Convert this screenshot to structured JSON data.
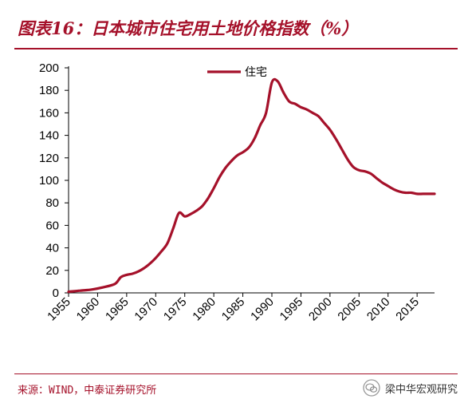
{
  "title": "图表16：日本城市住宅用土地价格指数（%）",
  "source": "来源：WIND，中泰证券研究所",
  "watermark": "梁中华宏观研究",
  "colors": {
    "accent": "#a5112a",
    "series": "#a5112a"
  },
  "chart_data": {
    "type": "line",
    "title": "图表16：日本城市住宅用土地价格指数（%）",
    "xlabel": "",
    "ylabel": "",
    "xlim": [
      1955,
      2018
    ],
    "ylim": [
      0,
      200
    ],
    "yticks": [
      0,
      20,
      40,
      60,
      80,
      100,
      120,
      140,
      160,
      180,
      200
    ],
    "xticks": [
      1955,
      1960,
      1965,
      1970,
      1975,
      1980,
      1985,
      1990,
      1995,
      2000,
      2005,
      2010,
      2015
    ],
    "legend": "top",
    "grid": false,
    "series": [
      {
        "name": "住宅",
        "x": [
          1955,
          1957,
          1959,
          1961,
          1963,
          1964,
          1965,
          1966,
          1967,
          1968,
          1969,
          1970,
          1971,
          1972,
          1973,
          1974,
          1975,
          1976,
          1977,
          1978,
          1979,
          1980,
          1981,
          1982,
          1983,
          1984,
          1985,
          1986,
          1987,
          1988,
          1989,
          1990,
          1991,
          1992,
          1993,
          1994,
          1995,
          1996,
          1997,
          1998,
          1999,
          2000,
          2001,
          2002,
          2003,
          2004,
          2005,
          2006,
          2007,
          2008,
          2009,
          2010,
          2011,
          2012,
          2013,
          2014,
          2015,
          2016,
          2017,
          2018
        ],
        "values": [
          1,
          2,
          3,
          5,
          8,
          14,
          16,
          17,
          19,
          22,
          26,
          31,
          37,
          44,
          57,
          71,
          68,
          70,
          73,
          77,
          84,
          93,
          103,
          111,
          117,
          122,
          125,
          129,
          137,
          149,
          160,
          187,
          188,
          178,
          170,
          168,
          165,
          163,
          160,
          157,
          151,
          145,
          137,
          128,
          119,
          112,
          109,
          108,
          106,
          102,
          98,
          95,
          92,
          90,
          89,
          89,
          88,
          88,
          88,
          88
        ]
      }
    ]
  }
}
